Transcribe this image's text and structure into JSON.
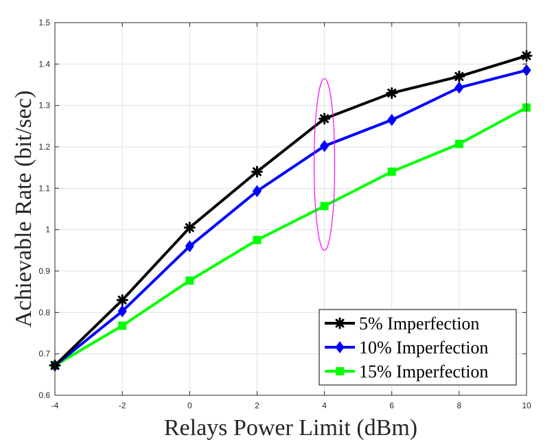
{
  "chart_data": {
    "type": "line",
    "title": "",
    "xlabel": "Relays Power Limit (dBm)",
    "ylabel": "Achievable Rate (bit/sec)",
    "x": [
      -4,
      -2,
      0,
      2,
      4,
      6,
      8,
      10
    ],
    "xlim": [
      -4,
      10
    ],
    "ylim": [
      0.6,
      1.5
    ],
    "xticks": [
      "-4",
      "-2",
      "0",
      "2",
      "4",
      "6",
      "8",
      "10"
    ],
    "yticks": [
      "0.6",
      "0.7",
      "0.8",
      "0.9",
      "1",
      "1.1",
      "1.2",
      "1.3",
      "1.4",
      "1.5"
    ],
    "grid": true,
    "legend_position": "bottom-right",
    "series": [
      {
        "name": "5% Imperfection",
        "color": "#000000",
        "marker": "asterisk",
        "values": [
          0.672,
          0.83,
          1.005,
          1.14,
          1.268,
          1.33,
          1.37,
          1.42
        ]
      },
      {
        "name": "10% Imperfection",
        "color": "#0000ff",
        "marker": "diamond",
        "values": [
          0.672,
          0.803,
          0.96,
          1.093,
          1.202,
          1.265,
          1.343,
          1.385
        ]
      },
      {
        "name": "15% Imperfection",
        "color": "#00ff00",
        "marker": "square",
        "values": [
          0.672,
          0.768,
          0.877,
          0.975,
          1.057,
          1.14,
          1.207,
          1.295
        ]
      }
    ],
    "annotation": {
      "type": "ellipse",
      "color": "#ff00ff",
      "x": 4,
      "y_range": [
        0.95,
        1.365
      ]
    }
  }
}
